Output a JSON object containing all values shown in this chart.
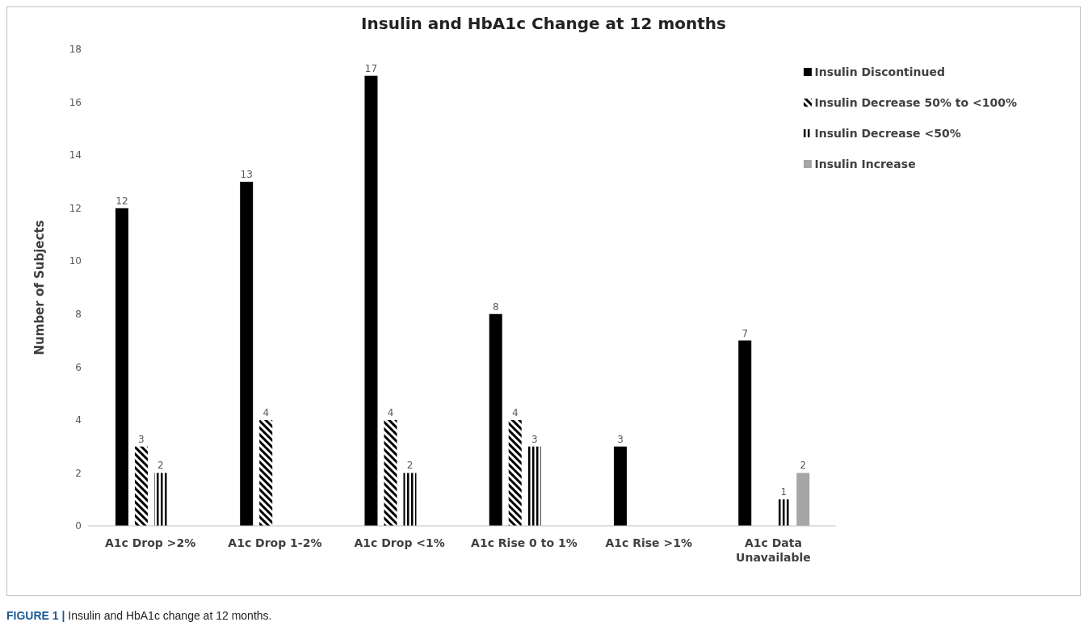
{
  "chart_data": {
    "type": "bar",
    "title": "Insulin and HbA1c Change at 12 months",
    "ylabel": "Number of Subjects",
    "categories": [
      "A1c Drop >2%",
      "A1c Drop 1-2%",
      "A1c Drop <1%",
      "A1c Rise 0 to 1%",
      "A1c Rise >1%",
      "A1c Data Unavailable"
    ],
    "series": [
      {
        "name": "Insulin Discontinued",
        "color": "#000000",
        "values": [
          12,
          13,
          17,
          8,
          3,
          7
        ]
      },
      {
        "name": "Insulin Decrease 50% to <100%",
        "color": "#000000",
        "values": [
          3,
          4,
          4,
          4,
          null,
          null
        ]
      },
      {
        "name": "Insulin Decrease <50%",
        "color": "#000000",
        "values": [
          2,
          null,
          2,
          3,
          null,
          1
        ]
      },
      {
        "name": "Insulin Increase",
        "color": "#a6a6a6",
        "values": [
          null,
          null,
          null,
          null,
          null,
          2
        ]
      }
    ],
    "ylim": [
      0,
      18
    ],
    "yticks": [
      0,
      2,
      4,
      6,
      8,
      10,
      12,
      14,
      16,
      18
    ],
    "grid": false,
    "legend": "top right",
    "data_labels": true,
    "annotations": [
      "FIGURE 1 | Insulin and HbA1c change at 12 months."
    ]
  }
}
